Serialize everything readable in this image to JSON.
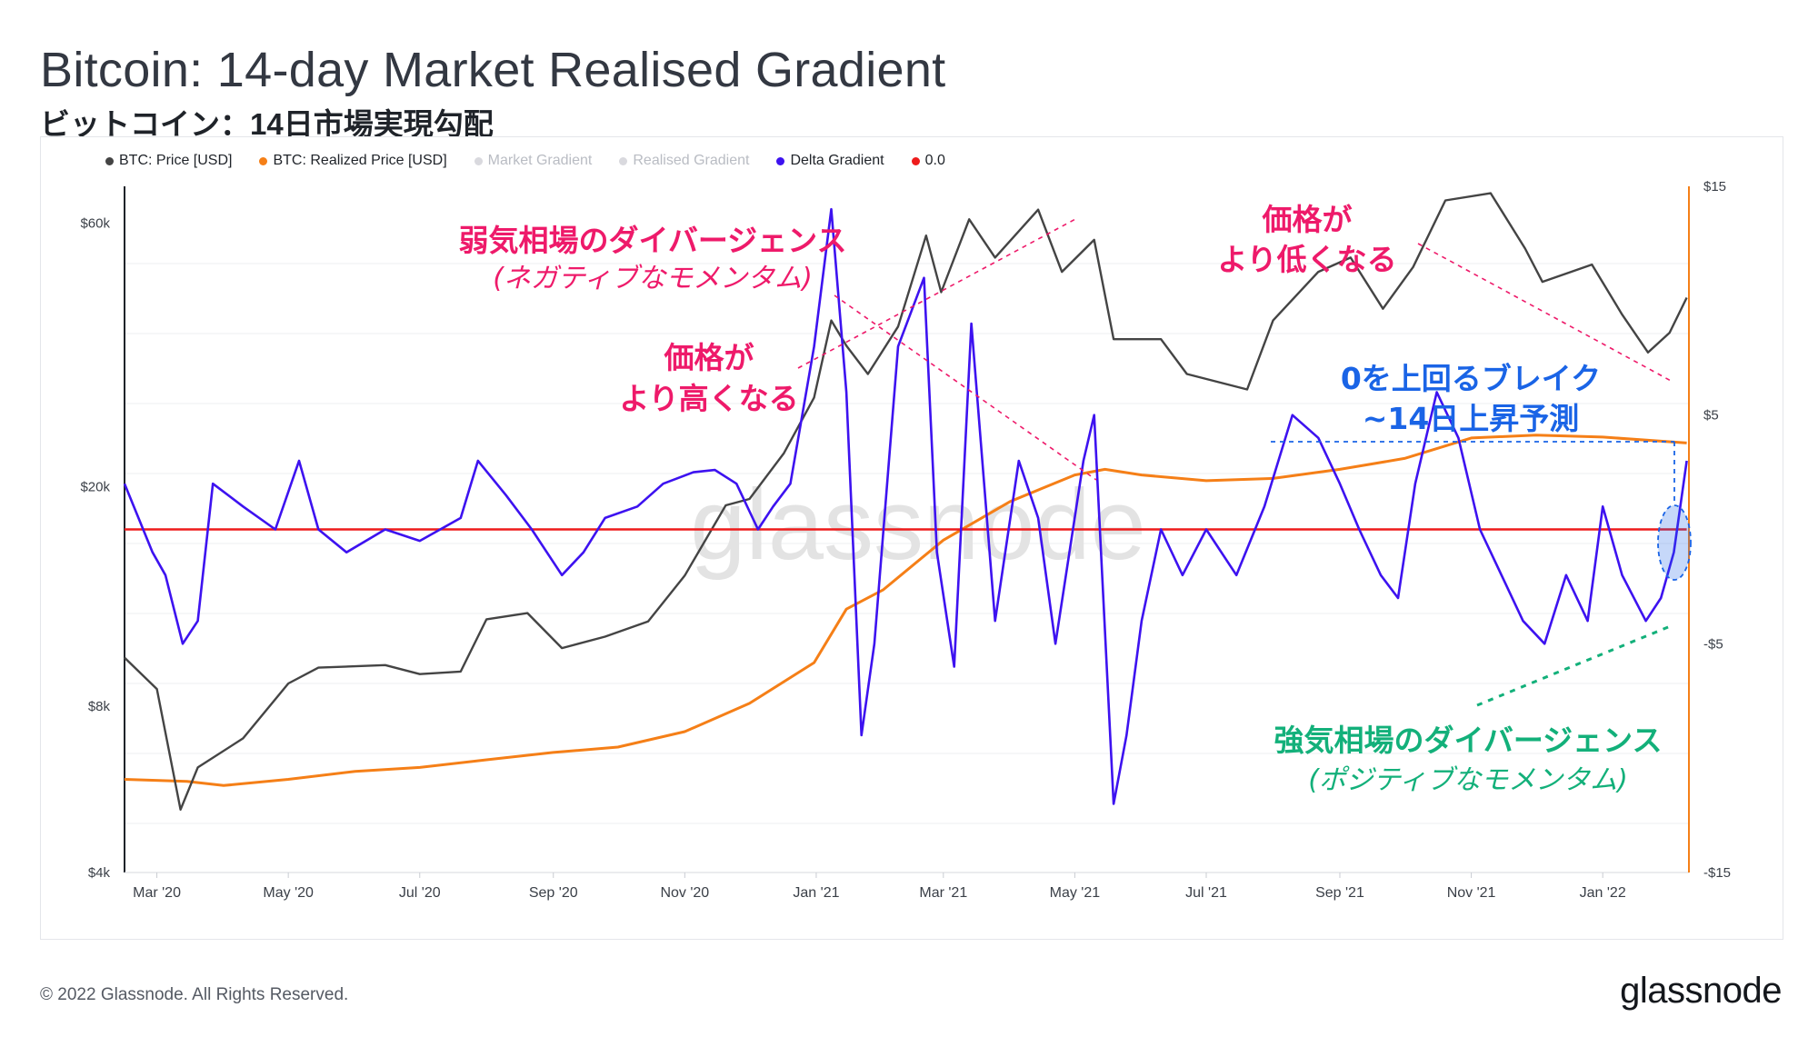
{
  "title": "Bitcoin: 14-day Market Realised Gradient",
  "subtitle": "ビットコイン：14日市場実現勾配",
  "legend": [
    {
      "label": "BTC: Price [USD]",
      "color": "#444444",
      "dim": false
    },
    {
      "label": "BTC: Realized Price [USD]",
      "color": "#f57f17",
      "dim": false
    },
    {
      "label": "Market Gradient",
      "color": "#e88fc0",
      "dim": true
    },
    {
      "label": "Realised Gradient",
      "color": "#7fd3e6",
      "dim": true
    },
    {
      "label": "Delta Gradient",
      "color": "#3d12f0",
      "dim": false
    },
    {
      "label": "0.0",
      "color": "#ee1b1b",
      "dim": false
    }
  ],
  "watermark": "glassnode",
  "footer": "© 2022 Glassnode. All Rights Reserved.",
  "logo": "glassnode",
  "colors": {
    "price": "#444444",
    "realized": "#f57f17",
    "delta": "#3d12f0",
    "zero": "#ee1b1b",
    "pink": "#ee1a6a",
    "green": "#13b07a",
    "blue": "#1a64e6",
    "axis": "#f57f17"
  },
  "annotations": {
    "bear_title": "弱気相場のダイバージェンス",
    "bear_sub": "(ネガティブなモメンタム)",
    "price_higher_1": "価格が",
    "price_higher_2": "より高くなる",
    "price_lower_1": "価格が",
    "price_lower_2": "より低くなる",
    "break_1": "0を上回るブレイク",
    "break_2": "~14日上昇予測",
    "bull_title": "強気相場のダイバージェンス",
    "bull_sub": "(ポジティブなモメンタム)"
  },
  "chart_data": {
    "type": "line",
    "x_ticks": [
      "Mar '20",
      "May '20",
      "Jul '20",
      "Sep '20",
      "Nov '20",
      "Jan '21",
      "Mar '21",
      "May '21",
      "Jul '21",
      "Sep '21",
      "Nov '21",
      "Jan '22"
    ],
    "y_left_ticks": [
      "$60k",
      "$20k",
      "$8k",
      "$4k"
    ],
    "y_right_ticks": [
      "$15",
      "$5",
      "-$5",
      "-$15"
    ],
    "left_axis": {
      "scale": "log",
      "range": [
        4000,
        70000
      ],
      "ticks": [
        60000,
        20000,
        8000,
        4000
      ]
    },
    "right_axis": {
      "scale": "linear",
      "range": [
        -15,
        15
      ],
      "ticks": [
        15,
        5,
        -5,
        -15
      ]
    },
    "series": [
      {
        "name": "BTC: Price [USD]",
        "axis": "left",
        "points": [
          [
            "2020-02-15",
            9800
          ],
          [
            "2020-03-01",
            8600
          ],
          [
            "2020-03-12",
            5200
          ],
          [
            "2020-03-20",
            6200
          ],
          [
            "2020-04-10",
            7000
          ],
          [
            "2020-05-01",
            8800
          ],
          [
            "2020-05-15",
            9400
          ],
          [
            "2020-06-15",
            9500
          ],
          [
            "2020-07-01",
            9150
          ],
          [
            "2020-07-20",
            9250
          ],
          [
            "2020-08-01",
            11500
          ],
          [
            "2020-08-20",
            11800
          ],
          [
            "2020-09-05",
            10200
          ],
          [
            "2020-09-25",
            10700
          ],
          [
            "2020-10-15",
            11400
          ],
          [
            "2020-11-01",
            13800
          ],
          [
            "2020-11-20",
            18500
          ],
          [
            "2020-12-01",
            19000
          ],
          [
            "2020-12-17",
            23000
          ],
          [
            "2020-12-31",
            29000
          ],
          [
            "2021-01-08",
            40000
          ],
          [
            "2021-01-15",
            36000
          ],
          [
            "2021-01-25",
            32000
          ],
          [
            "2021-02-08",
            39000
          ],
          [
            "2021-02-21",
            57000
          ],
          [
            "2021-02-28",
            45000
          ],
          [
            "2021-03-13",
            61000
          ],
          [
            "2021-03-25",
            52000
          ],
          [
            "2021-04-14",
            63500
          ],
          [
            "2021-04-25",
            49000
          ],
          [
            "2021-05-10",
            56000
          ],
          [
            "2021-05-19",
            37000
          ],
          [
            "2021-06-10",
            37000
          ],
          [
            "2021-06-22",
            32000
          ],
          [
            "2021-07-20",
            30000
          ],
          [
            "2021-08-01",
            40000
          ],
          [
            "2021-08-22",
            49000
          ],
          [
            "2021-09-06",
            52000
          ],
          [
            "2021-09-21",
            42000
          ],
          [
            "2021-10-05",
            50000
          ],
          [
            "2021-10-20",
            66000
          ],
          [
            "2021-11-10",
            68000
          ],
          [
            "2021-11-26",
            54000
          ],
          [
            "2021-12-04",
            47000
          ],
          [
            "2021-12-27",
            50500
          ],
          [
            "2022-01-10",
            41000
          ],
          [
            "2022-01-22",
            35000
          ],
          [
            "2022-02-01",
            38000
          ],
          [
            "2022-02-09",
            44000
          ]
        ]
      },
      {
        "name": "BTC: Realized Price [USD]",
        "axis": "left",
        "points": [
          [
            "2020-02-15",
            5900
          ],
          [
            "2020-03-15",
            5850
          ],
          [
            "2020-04-01",
            5750
          ],
          [
            "2020-05-01",
            5900
          ],
          [
            "2020-06-01",
            6100
          ],
          [
            "2020-07-01",
            6200
          ],
          [
            "2020-08-01",
            6400
          ],
          [
            "2020-09-01",
            6600
          ],
          [
            "2020-10-01",
            6750
          ],
          [
            "2020-11-01",
            7200
          ],
          [
            "2020-12-01",
            8100
          ],
          [
            "2020-12-31",
            9600
          ],
          [
            "2021-01-15",
            12000
          ],
          [
            "2021-02-01",
            13000
          ],
          [
            "2021-03-01",
            16000
          ],
          [
            "2021-04-01",
            18800
          ],
          [
            "2021-05-01",
            21000
          ],
          [
            "2021-05-15",
            21500
          ],
          [
            "2021-06-01",
            21000
          ],
          [
            "2021-07-01",
            20500
          ],
          [
            "2021-08-01",
            20700
          ],
          [
            "2021-09-01",
            21500
          ],
          [
            "2021-10-01",
            22500
          ],
          [
            "2021-11-01",
            24500
          ],
          [
            "2021-12-01",
            24800
          ],
          [
            "2022-01-01",
            24600
          ],
          [
            "2022-02-09",
            24000
          ]
        ]
      },
      {
        "name": "Delta Gradient",
        "axis": "right",
        "points": [
          [
            "2020-02-15",
            2
          ],
          [
            "2020-02-28",
            -1
          ],
          [
            "2020-03-05",
            -2
          ],
          [
            "2020-03-13",
            -5
          ],
          [
            "2020-03-20",
            -4
          ],
          [
            "2020-03-27",
            2
          ],
          [
            "2020-04-10",
            1
          ],
          [
            "2020-04-25",
            0
          ],
          [
            "2020-05-06",
            3
          ],
          [
            "2020-05-15",
            0
          ],
          [
            "2020-05-28",
            -1
          ],
          [
            "2020-06-15",
            0
          ],
          [
            "2020-07-01",
            -0.5
          ],
          [
            "2020-07-20",
            0.5
          ],
          [
            "2020-07-28",
            3
          ],
          [
            "2020-08-10",
            1.5
          ],
          [
            "2020-08-22",
            0
          ],
          [
            "2020-09-05",
            -2
          ],
          [
            "2020-09-15",
            -1
          ],
          [
            "2020-09-25",
            0.5
          ],
          [
            "2020-10-10",
            1
          ],
          [
            "2020-10-22",
            2
          ],
          [
            "2020-11-05",
            2.5
          ],
          [
            "2020-11-15",
            2.6
          ],
          [
            "2020-11-25",
            2
          ],
          [
            "2020-12-05",
            0
          ],
          [
            "2020-12-12",
            1
          ],
          [
            "2020-12-20",
            2
          ],
          [
            "2020-12-31",
            8
          ],
          [
            "2021-01-08",
            14
          ],
          [
            "2021-01-15",
            6
          ],
          [
            "2021-01-22",
            -9
          ],
          [
            "2021-01-28",
            -5
          ],
          [
            "2021-02-08",
            8
          ],
          [
            "2021-02-20",
            11
          ],
          [
            "2021-02-26",
            -1
          ],
          [
            "2021-03-06",
            -6
          ],
          [
            "2021-03-14",
            9
          ],
          [
            "2021-03-25",
            -4
          ],
          [
            "2021-04-05",
            3
          ],
          [
            "2021-04-14",
            0.5
          ],
          [
            "2021-04-22",
            -5
          ],
          [
            "2021-05-05",
            3
          ],
          [
            "2021-05-10",
            5
          ],
          [
            "2021-05-19",
            -12
          ],
          [
            "2021-05-25",
            -9
          ],
          [
            "2021-06-01",
            -4
          ],
          [
            "2021-06-10",
            0
          ],
          [
            "2021-06-20",
            -2
          ],
          [
            "2021-07-01",
            0
          ],
          [
            "2021-07-15",
            -2
          ],
          [
            "2021-07-28",
            1
          ],
          [
            "2021-08-10",
            5
          ],
          [
            "2021-08-22",
            4
          ],
          [
            "2021-09-01",
            2
          ],
          [
            "2021-09-10",
            0
          ],
          [
            "2021-09-20",
            -2
          ],
          [
            "2021-09-28",
            -3
          ],
          [
            "2021-10-06",
            2
          ],
          [
            "2021-10-16",
            6
          ],
          [
            "2021-10-26",
            4
          ],
          [
            "2021-11-05",
            0
          ],
          [
            "2021-11-15",
            -2
          ],
          [
            "2021-11-25",
            -4
          ],
          [
            "2021-12-05",
            -5
          ],
          [
            "2021-12-15",
            -2
          ],
          [
            "2021-12-25",
            -4
          ],
          [
            "2022-01-01",
            1
          ],
          [
            "2022-01-10",
            -2
          ],
          [
            "2022-01-21",
            -4
          ],
          [
            "2022-01-28",
            -3
          ],
          [
            "2022-02-03",
            -1
          ],
          [
            "2022-02-09",
            3
          ]
        ]
      },
      {
        "name": "0.0",
        "axis": "right",
        "points": [
          [
            "2020-02-15",
            0
          ],
          [
            "2022-02-09",
            0
          ]
        ]
      }
    ]
  }
}
